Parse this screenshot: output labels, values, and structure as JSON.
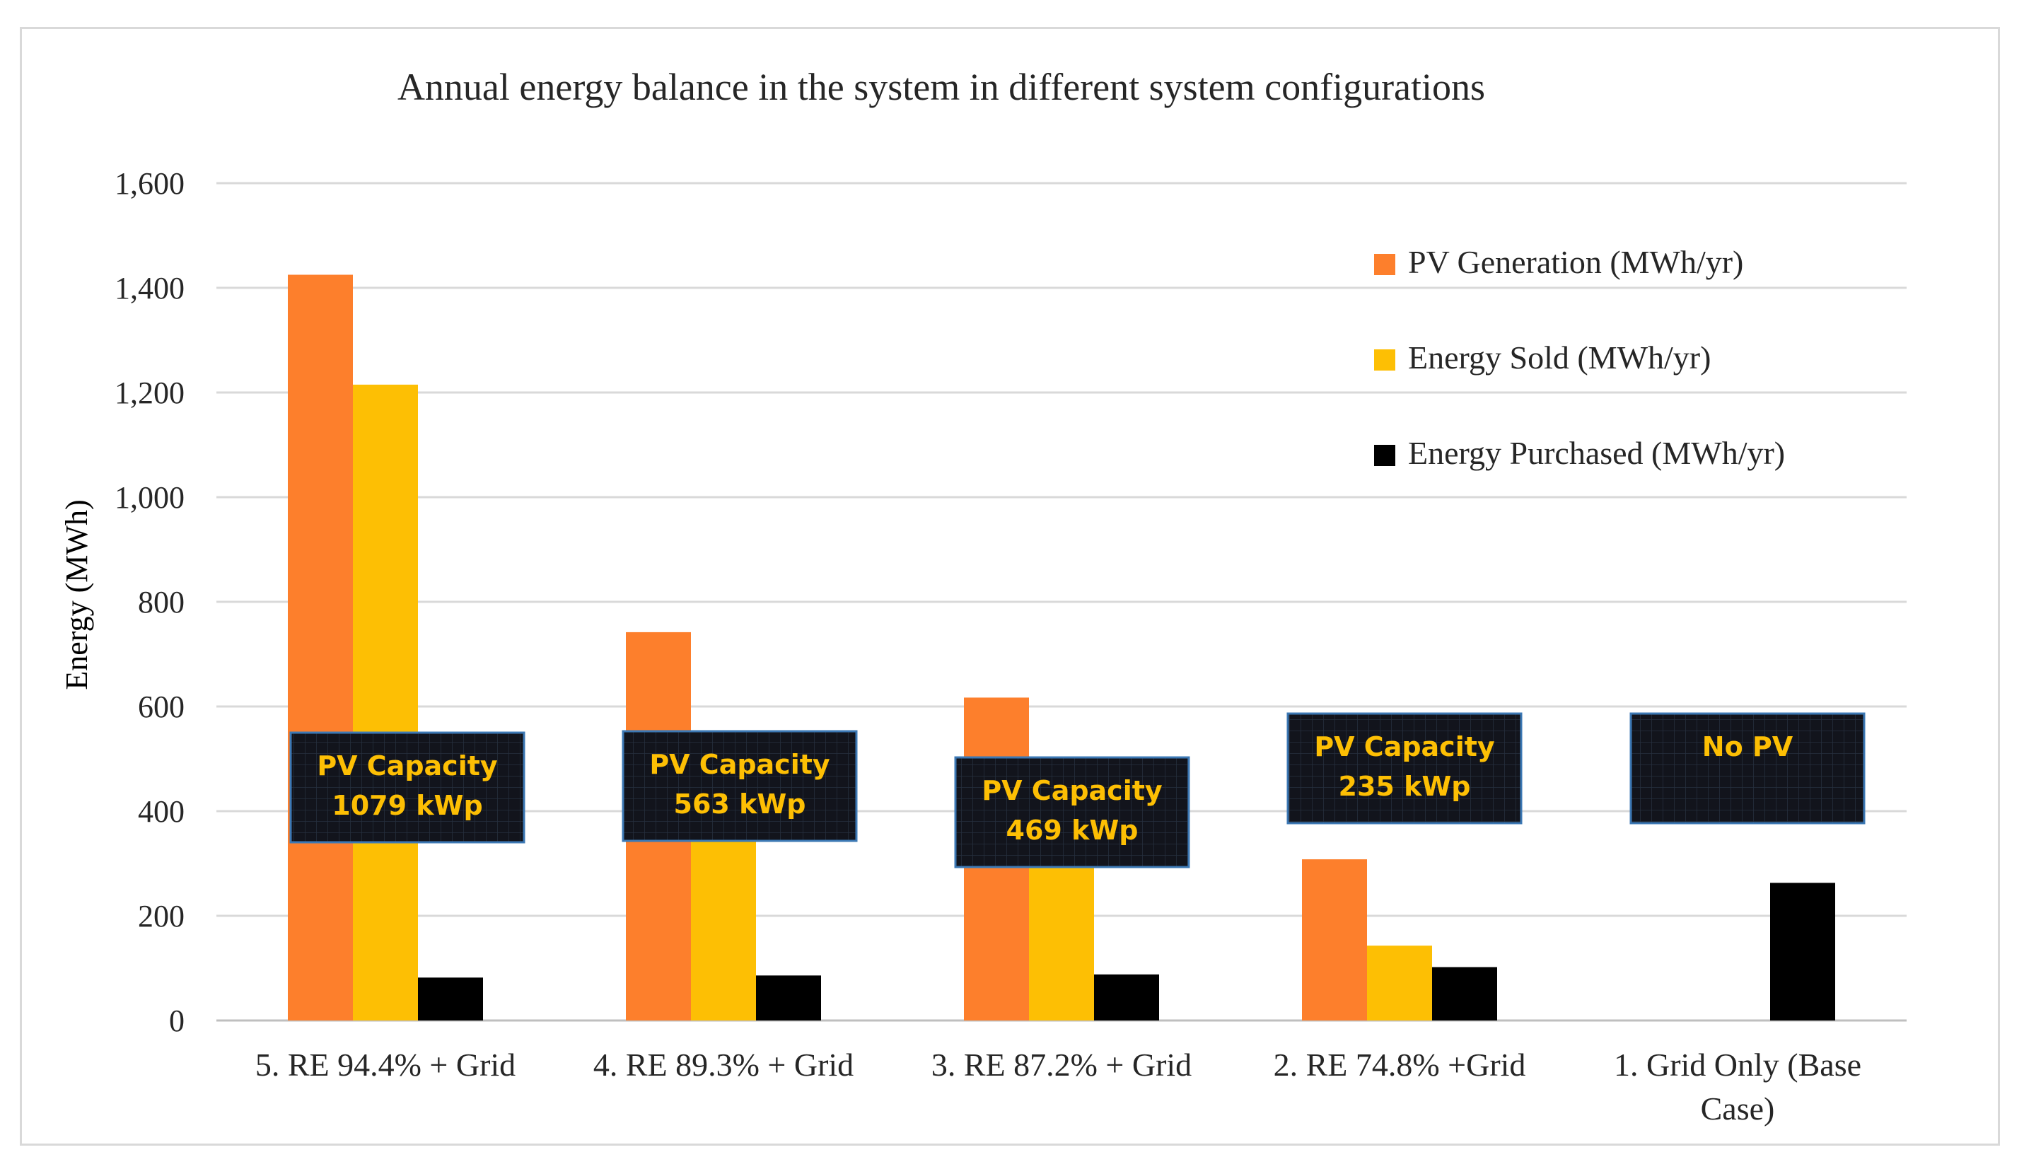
{
  "chart_data": {
    "type": "bar",
    "title": "Annual energy balance in the system  in different system  configurations",
    "xlabel": "",
    "ylabel": "Energy  (MWh)",
    "ylim": [
      0,
      1600
    ],
    "yticks": [
      0,
      200,
      400,
      600,
      800,
      1000,
      1200,
      1400,
      1600
    ],
    "ytick_labels": [
      "0",
      "200",
      "400",
      "600",
      "800",
      "1,000",
      "1,200",
      "1,400",
      "1,600"
    ],
    "grid": true,
    "legend_position": "top-right",
    "categories": [
      "5. RE 94.4% + Grid",
      "4. RE 89.3% + Grid",
      "3. RE 87.2% + Grid",
      "2. RE 74.8% +Grid",
      "1. Grid Only (Base Case)"
    ],
    "category_lines": [
      [
        "5. RE 94.4% + Grid"
      ],
      [
        "4. RE 89.3% + Grid"
      ],
      [
        "3. RE 87.2% + Grid"
      ],
      [
        "2. RE 74.8% +Grid"
      ],
      [
        "1. Grid Only (Base",
        "Case)"
      ]
    ],
    "series": [
      {
        "name": "PV Generation (MWh/yr)",
        "color": "#fd7f2c",
        "values": [
          1425,
          742,
          617,
          308,
          0
        ]
      },
      {
        "name": "Energy Sold (MWh/yr)",
        "color": "#fdbf04",
        "values": [
          1215,
          400,
          340,
          143,
          0
        ]
      },
      {
        "name": "Energy Purchased (MWh/yr)",
        "color": "#000000",
        "values": [
          82,
          86,
          88,
          102,
          263
        ]
      }
    ],
    "annotations": [
      {
        "lines": [
          "PV Capacity",
          "1079 kWp"
        ]
      },
      {
        "lines": [
          "PV Capacity",
          "563 kWp"
        ]
      },
      {
        "lines": [
          "PV Capacity",
          "469 kWp"
        ]
      },
      {
        "lines": [
          "PV Capacity",
          "235 kWp"
        ]
      },
      {
        "lines": [
          "No PV"
        ]
      }
    ],
    "annotation_text_color": "#fdbf04",
    "annotation_fill": "#12141c",
    "annotation_border": "#3c78b4"
  }
}
